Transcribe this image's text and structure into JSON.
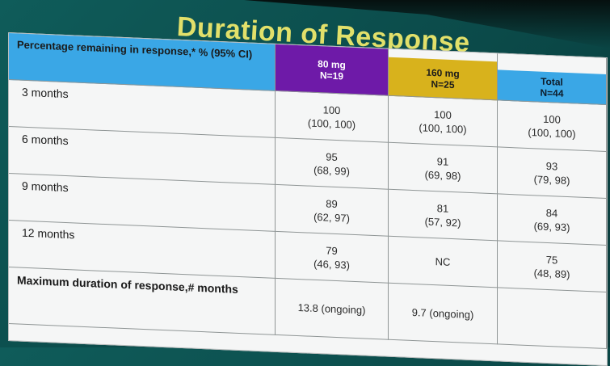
{
  "title": "Duration of Response",
  "header": {
    "row_label": "Percentage remaining  in response,* % (95% CI)",
    "columns": [
      {
        "line1": "80 mg",
        "line2": "N=19"
      },
      {
        "line1": "160 mg",
        "line2": "N=25"
      },
      {
        "line1": "Total",
        "line2": "N=44"
      }
    ]
  },
  "rows": [
    {
      "label": "3 months",
      "values": [
        [
          "100",
          "(100, 100)"
        ],
        [
          "100",
          "(100, 100)"
        ],
        [
          "100",
          "(100, 100)"
        ]
      ]
    },
    {
      "label": "6 months",
      "values": [
        [
          "95",
          "(68, 99)"
        ],
        [
          "91",
          "(69, 98)"
        ],
        [
          "93",
          "(79, 98)"
        ]
      ]
    },
    {
      "label": "9 months",
      "values": [
        [
          "89",
          "(62, 97)"
        ],
        [
          "81",
          "(57, 92)"
        ],
        [
          "84",
          "(69, 93)"
        ]
      ]
    },
    {
      "label": "12 months",
      "values": [
        [
          "79",
          "(46, 93)"
        ],
        [
          "NC",
          ""
        ],
        [
          "75",
          "(48, 89)"
        ]
      ]
    }
  ],
  "max_row": {
    "label": "Maximum duration of response,# months",
    "values": [
      "13.8 (ongoing)",
      "9.7 (ongoing)",
      ""
    ]
  },
  "colors": {
    "background": "#0b4a49",
    "title": "#e2e06a",
    "header_blue": "#3aa7e6",
    "header_purple": "#6e1aa8",
    "header_yellow": "#d8b21c"
  }
}
